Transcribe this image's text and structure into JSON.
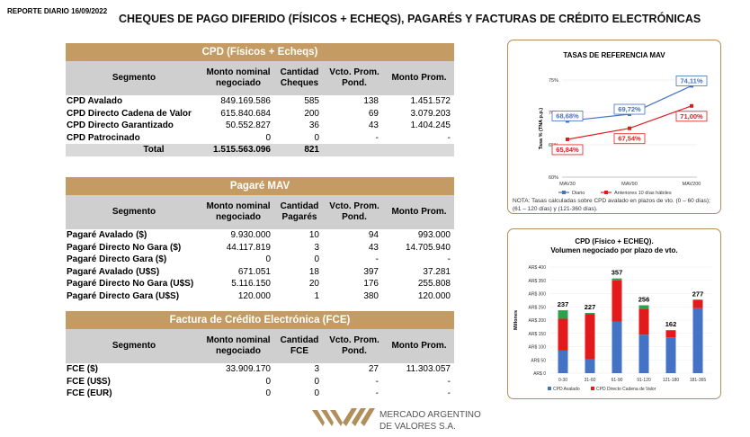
{
  "header": {
    "report_date": "REPORTE DIARIO 16/09/2022",
    "title": "CHEQUES DE PAGO DIFERIDO (FÍSICOS + ECHEQS), PAGARÉS Y FACTURAS DE CRÉDITO ELECTRÓNICAS"
  },
  "cpd_table": {
    "title": "CPD (Físicos + Echeqs)",
    "headers": [
      "Segmento",
      "Monto nominal negociado",
      "Cantidad Cheques",
      "Vcto. Prom. Pond.",
      "Monto Prom."
    ],
    "rows": [
      [
        "CPD Avalado",
        "849.169.586",
        "585",
        "138",
        "1.451.572"
      ],
      [
        "CPD Directo Cadena de Valor",
        "615.840.684",
        "200",
        "69",
        "3.079.203"
      ],
      [
        "CPD Directo Garantizado",
        "50.552.827",
        "36",
        "43",
        "1.404.245"
      ],
      [
        "CPD Patrocinado",
        "0",
        "0",
        "-",
        "-"
      ]
    ],
    "total": [
      "Total",
      "1.515.563.096",
      "821",
      "",
      ""
    ]
  },
  "pagare_table": {
    "title": "Pagaré MAV",
    "headers": [
      "Segmento",
      "Monto nominal negociado",
      "Cantidad Pagarés",
      "Vcto. Prom. Pond.",
      "Monto Prom."
    ],
    "rows": [
      [
        "Pagaré Avalado ($)",
        "9.930.000",
        "10",
        "94",
        "993.000"
      ],
      [
        "Pagaré Directo No Gara ($)",
        "44.117.819",
        "3",
        "43",
        "14.705.940"
      ],
      [
        "Pagaré Directo Gara ($)",
        "0",
        "0",
        "-",
        "-"
      ],
      [
        "Pagaré Avalado (U$S)",
        "671.051",
        "18",
        "397",
        "37.281"
      ],
      [
        "Pagaré Directo No Gara (U$S)",
        "5.116.150",
        "20",
        "176",
        "255.808"
      ],
      [
        "Pagaré Directo Gara (U$S)",
        "120.000",
        "1",
        "380",
        "120.000"
      ]
    ]
  },
  "fce_table": {
    "title": "Factura de Crédito Electrónica (FCE)",
    "headers": [
      "Segmento",
      "Monto nominal negociado",
      "Cantidad FCE",
      "Vcto. Prom. Pond.",
      "Monto Prom."
    ],
    "rows": [
      [
        "FCE ($)",
        "33.909.170",
        "3",
        "27",
        "11.303.057"
      ],
      [
        "FCE (U$S)",
        "0",
        "0",
        "-",
        "-"
      ],
      [
        "FCE (EUR)",
        "0",
        "0",
        "-",
        "-"
      ]
    ]
  },
  "chart_data": [
    {
      "type": "line",
      "title": "TASAS DE REFERENCIA MAV",
      "ylabel": "Tasa % (TNA p.p.)",
      "categories": [
        "MAV30",
        "MAV90",
        "MAV200"
      ],
      "ylim": [
        60,
        75
      ],
      "yticks": [
        "60%",
        "65%",
        "70%",
        "75%"
      ],
      "series": [
        {
          "name": "Diario",
          "values": [
            68.68,
            69.72,
            74.11
          ],
          "labels": [
            "68,68%",
            "69,72%",
            "74,11%"
          ],
          "color": "#4472c4"
        },
        {
          "name": "Anteriores 10 días hábiles",
          "values": [
            65.84,
            67.54,
            71.0
          ],
          "labels": [
            "65,84%",
            "67,54%",
            "71,00%"
          ],
          "color": "#e31a1c"
        }
      ],
      "legend": "bottom",
      "note": "NOTA: Tasas calculadas sobre CPD avalado en plazos de vto. (0 – 60 días); (61 – 120 días) y (121-360 días)."
    },
    {
      "type": "bar",
      "stacked": true,
      "title": "CPD (Físico + ECHEQ).",
      "subtitle": "Volumen negociado por plazo de vto.",
      "ylabel": "Millones",
      "categories": [
        "0-30",
        "31-60",
        "61-90",
        "91-120",
        "121-180",
        "181-365"
      ],
      "ylim": [
        0,
        400
      ],
      "yticks": [
        "AR$ 0",
        "AR$ 50",
        "AR$ 100",
        "AR$ 150",
        "AR$ 200",
        "AR$ 250",
        "AR$ 300",
        "AR$ 350",
        "AR$ 400"
      ],
      "totals": [
        "237",
        "227",
        "357",
        "256",
        "162",
        "277"
      ],
      "series": [
        {
          "name": "CPD Avalado",
          "values": [
            85,
            52,
            195,
            145,
            135,
            245
          ],
          "color": "#4472c4"
        },
        {
          "name": "CPD Directo Cadena de Valor",
          "values": [
            120,
            170,
            155,
            98,
            27,
            32
          ],
          "color": "#e31a1c"
        },
        {
          "name": "",
          "values": [
            32,
            5,
            7,
            13,
            0,
            0
          ],
          "color": "#2ca04c"
        }
      ],
      "legend": "bottom"
    }
  ],
  "footer": {
    "logo_line1": "MERCADO ARGENTINO",
    "logo_line2": "DE VALORES S.A."
  }
}
